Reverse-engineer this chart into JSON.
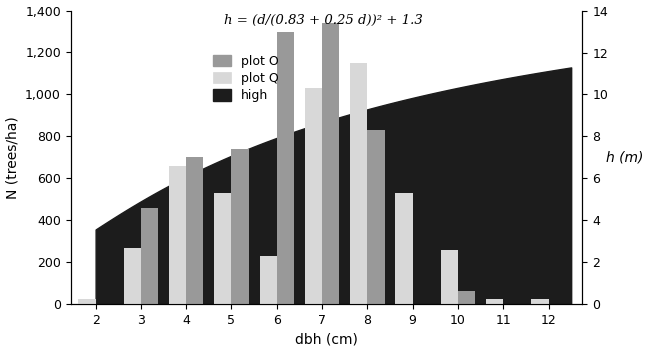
{
  "dbh": [
    2,
    3,
    4,
    5,
    6,
    7,
    8,
    9,
    10,
    11,
    12
  ],
  "plot_O": [
    0,
    460,
    700,
    740,
    1300,
    1340,
    830,
    0,
    65,
    0,
    0
  ],
  "plot_Q": [
    25,
    270,
    660,
    530,
    230,
    1030,
    1150,
    530,
    260,
    25,
    25
  ],
  "bar_width": 0.38,
  "plot_O_color": "#999999",
  "plot_Q_color": "#d8d8d8",
  "high_color": "#1c1c1c",
  "ylabel_left": "N (trees/ha)",
  "ylabel_right": "h (m)",
  "xlabel": "dbh (cm)",
  "ylim_left": [
    0,
    1400
  ],
  "ylim_right": [
    0,
    14
  ],
  "equation": "h = (d/(0.83 + 0.25 d))² + 1.3",
  "legend_labels": [
    "plot O",
    "plot Q",
    "high"
  ],
  "xticks": [
    2,
    3,
    4,
    5,
    6,
    7,
    8,
    9,
    10,
    11,
    12
  ],
  "yticks_left": [
    0,
    200,
    400,
    600,
    800,
    1000,
    1200,
    1400
  ],
  "yticks_right": [
    0,
    2,
    4,
    6,
    8,
    10,
    12,
    14
  ]
}
